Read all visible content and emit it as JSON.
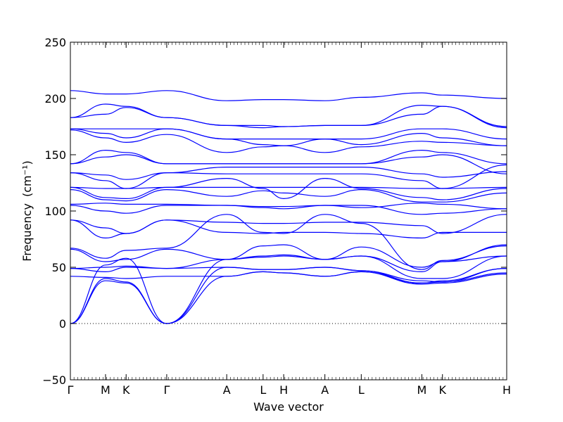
{
  "chart_data": {
    "type": "line",
    "xlabel": "Wave vector",
    "ylabel": "Frequency",
    "ylabel_unit": "(cm⁻¹)",
    "ylim": [
      -50,
      250
    ],
    "yticks": [
      "−50",
      "0",
      "50",
      "100",
      "150",
      "200",
      "250"
    ],
    "ytick_values": [
      -50,
      0,
      50,
      100,
      150,
      200,
      250
    ],
    "xticks": [
      "Γ",
      "M",
      "K",
      "Γ",
      "A",
      "L",
      "H",
      "A",
      "L",
      "M",
      "K",
      "H"
    ],
    "xtick_positions": [
      0,
      0.58,
      0.92,
      1.59,
      2.58,
      3.18,
      3.52,
      4.2,
      4.8,
      5.8,
      6.14,
      7.2
    ],
    "xlim": [
      0,
      7.2
    ],
    "grid": false,
    "zero_line": {
      "y": 0,
      "style": "dotted"
    },
    "colors": {
      "bands": "#0000ff",
      "axes": "#000000",
      "zero_line": "#000000"
    },
    "series": [
      {
        "x": [
          0,
          0.58,
          0.92,
          1.59,
          2.58,
          3.18,
          3.52,
          4.2,
          4.8,
          5.8,
          6.14,
          7.2
        ],
        "values": [
          207,
          204,
          204,
          207,
          198,
          199,
          199,
          198,
          201,
          205,
          203,
          200
        ]
      },
      {
        "x": [
          0,
          0.58,
          0.92,
          1.59,
          2.58,
          3.18,
          3.52,
          4.2,
          4.8,
          5.8,
          6.14,
          7.2
        ],
        "values": [
          183,
          195,
          193,
          183,
          176,
          176,
          175,
          176,
          176,
          194,
          193,
          175
        ]
      },
      {
        "x": [
          0,
          0.58,
          0.92,
          1.59,
          2.58,
          3.18,
          3.52,
          4.2,
          4.8,
          5.8,
          6.14,
          7.2
        ],
        "values": [
          183,
          186,
          192,
          183,
          176,
          174,
          175,
          176,
          176,
          186,
          193,
          174
        ]
      },
      {
        "x": [
          0,
          0.58,
          0.92,
          1.59,
          2.58,
          3.18,
          3.52,
          4.2,
          4.8,
          5.8,
          6.14,
          7.2
        ],
        "values": [
          173,
          173,
          173,
          173,
          164,
          164,
          164,
          164,
          164,
          173,
          173,
          164
        ]
      },
      {
        "x": [
          0,
          0.58,
          0.92,
          1.59,
          2.58,
          3.18,
          3.52,
          4.2,
          4.8,
          5.8,
          6.14,
          7.2
        ],
        "values": [
          173,
          169,
          165,
          173,
          164,
          159,
          158,
          164,
          159,
          169,
          165,
          158
        ]
      },
      {
        "x": [
          0,
          0.58,
          0.92,
          1.59,
          2.58,
          3.18,
          3.52,
          4.2,
          4.8,
          5.8,
          6.14,
          7.2
        ],
        "values": [
          172,
          165,
          161,
          168,
          152,
          157,
          158,
          152,
          157,
          162,
          161,
          158
        ]
      },
      {
        "x": [
          0,
          0.58,
          0.92,
          1.59,
          2.58,
          3.18,
          3.52,
          4.2,
          4.8,
          5.8,
          6.14,
          7.2
        ],
        "values": [
          142,
          154,
          152,
          142,
          142,
          142,
          142,
          142,
          142,
          154,
          152,
          142
        ]
      },
      {
        "x": [
          0,
          0.58,
          0.92,
          1.59,
          2.58,
          3.18,
          3.52,
          4.2,
          4.8,
          5.8,
          6.14,
          7.2
        ],
        "values": [
          142,
          148,
          150,
          142,
          142,
          142,
          142,
          142,
          142,
          148,
          150,
          133
        ]
      },
      {
        "x": [
          0,
          0.58,
          0.92,
          1.59,
          2.58,
          3.18,
          3.52,
          4.2,
          4.8,
          5.8,
          6.14,
          7.2
        ],
        "values": [
          134,
          132,
          128,
          134,
          139,
          139,
          139,
          139,
          139,
          133,
          130,
          135
        ]
      },
      {
        "x": [
          0,
          0.58,
          0.92,
          1.59,
          2.58,
          3.18,
          3.52,
          4.2,
          4.8,
          5.8,
          6.14,
          7.2
        ],
        "values": [
          134,
          127,
          120,
          134,
          133,
          133,
          133,
          133,
          133,
          127,
          120,
          141
        ]
      },
      {
        "x": [
          0,
          0.58,
          0.92,
          1.59,
          2.58,
          3.18,
          3.52,
          4.2,
          4.8,
          5.8,
          6.14,
          7.2
        ],
        "values": [
          121,
          120,
          120,
          121,
          121,
          121,
          121,
          121,
          121,
          120,
          120,
          121
        ]
      },
      {
        "x": [
          0,
          0.58,
          0.92,
          1.59,
          2.58,
          3.18,
          3.52,
          4.2,
          4.8,
          5.8,
          6.14,
          7.2
        ],
        "values": [
          121,
          112,
          111,
          121,
          129,
          120,
          111,
          129,
          120,
          112,
          110,
          120
        ]
      },
      {
        "x": [
          0,
          0.58,
          0.92,
          1.59,
          2.58,
          3.18,
          3.52,
          4.2,
          4.8,
          5.8,
          6.14,
          7.2
        ],
        "values": [
          119,
          110,
          109,
          119,
          113,
          118,
          116,
          113,
          119,
          108,
          108,
          116
        ]
      },
      {
        "x": [
          0,
          0.58,
          0.92,
          1.59,
          2.58,
          3.18,
          3.52,
          4.2,
          4.8,
          5.8,
          6.14,
          7.2
        ],
        "values": [
          106,
          107,
          106,
          106,
          105,
          103,
          102,
          105,
          103,
          107,
          106,
          102
        ]
      },
      {
        "x": [
          0,
          0.58,
          0.92,
          1.59,
          2.58,
          3.18,
          3.52,
          4.2,
          4.8,
          5.8,
          6.14,
          7.2
        ],
        "values": [
          105,
          100,
          98,
          105,
          105,
          104,
          104,
          105,
          105,
          97,
          98,
          102
        ]
      },
      {
        "x": [
          0,
          0.58,
          0.92,
          1.59,
          2.58,
          3.18,
          3.52,
          4.2,
          4.8,
          5.8,
          6.14,
          7.2
        ],
        "values": [
          92,
          85,
          80,
          92,
          90,
          89,
          89,
          90,
          90,
          87,
          80,
          97
        ]
      },
      {
        "x": [
          0,
          0.58,
          0.92,
          1.59,
          2.58,
          3.18,
          3.52,
          4.2,
          4.8,
          5.8,
          6.14,
          7.2
        ],
        "values": [
          92,
          76,
          80,
          92,
          81,
          80,
          81,
          81,
          80,
          76,
          81,
          81
        ]
      },
      {
        "x": [
          0,
          0.58,
          0.92,
          1.59,
          2.58,
          3.18,
          3.52,
          4.2,
          4.8,
          5.8,
          6.14,
          7.2
        ],
        "values": [
          67,
          58,
          65,
          67,
          97,
          81,
          80,
          97,
          89,
          48,
          56,
          69
        ]
      },
      {
        "x": [
          0,
          0.58,
          0.92,
          1.59,
          2.58,
          3.18,
          3.52,
          4.2,
          4.8,
          5.8,
          6.14,
          7.2
        ],
        "values": [
          66,
          55,
          57,
          66,
          57,
          69,
          70,
          57,
          68,
          50,
          55,
          70
        ]
      },
      {
        "x": [
          0,
          0.58,
          0.92,
          1.59,
          2.58,
          3.18,
          3.52,
          4.2,
          4.8,
          5.8,
          6.14,
          7.2
        ],
        "values": [
          49,
          50,
          51,
          49,
          57,
          60,
          61,
          57,
          60,
          40,
          40,
          60
        ]
      },
      {
        "x": [
          0,
          0.58,
          0.92,
          1.59,
          2.58,
          3.18,
          3.52,
          4.2,
          4.8,
          5.8,
          6.14,
          7.2
        ],
        "values": [
          49,
          46,
          50,
          49,
          50,
          48,
          48,
          50,
          47,
          38,
          37,
          49
        ]
      },
      {
        "x": [
          0,
          0.58,
          0.92,
          1.59,
          2.58,
          3.18,
          3.52,
          4.2,
          4.8,
          5.8,
          6.14,
          7.2
        ],
        "values": [
          42,
          41,
          40,
          42,
          42,
          46,
          45,
          42,
          46,
          36,
          37,
          45
        ]
      },
      {
        "x": [
          0,
          0.58,
          0.92,
          1.59,
          2.58,
          3.18,
          3.52,
          4.2,
          4.8,
          5.8,
          6.14,
          7.2
        ],
        "values": [
          0,
          40,
          37,
          0,
          42,
          46,
          45,
          42,
          46,
          35,
          36,
          44
        ]
      },
      {
        "x": [
          0,
          0.58,
          0.92,
          1.59,
          2.58,
          3.18,
          3.52,
          4.2,
          4.8,
          5.8,
          6.14,
          7.2
        ],
        "values": [
          0,
          38,
          36,
          0,
          50,
          48,
          48,
          50,
          47,
          36,
          38,
          49
        ]
      },
      {
        "x": [
          0,
          0.58,
          0.92,
          1.59,
          2.58,
          3.18,
          3.52,
          4.2,
          4.8,
          5.8,
          6.14,
          7.2
        ],
        "values": [
          0,
          52,
          58,
          0,
          57,
          59,
          60,
          57,
          60,
          46,
          55,
          60
        ]
      }
    ]
  }
}
